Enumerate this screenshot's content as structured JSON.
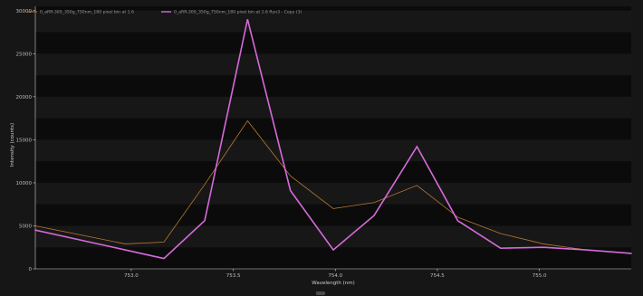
{
  "colors": {
    "background": "#0b0b0b",
    "band_dark": "#0b0b0b",
    "band_light": "#171717",
    "series_1": "#b9782f",
    "series_2": "#d66ad9",
    "axis": "#cfcfcf"
  },
  "chart_data": {
    "type": "line",
    "title": "",
    "xlabel": "Wavelength (nm)",
    "ylabel": "Intensity (counts)",
    "xlim": [
      752.53,
      755.45
    ],
    "ylim": [
      0,
      30500
    ],
    "x_ticks": [
      753.0,
      753.5,
      754.0,
      754.5,
      755.0
    ],
    "x_tick_labels": [
      "753.0",
      "753.5",
      "754.0",
      "754.5",
      "755.0"
    ],
    "y_ticks": [
      0,
      5000,
      10000,
      15000,
      20000,
      25000,
      30000
    ],
    "y_tick_labels": [
      "0",
      "5000",
      "10000",
      "15000",
      "20000",
      "25000",
      "30000"
    ],
    "grid": false,
    "legend_position": "top-left",
    "series": [
      {
        "name": "0_aRR-300_350g_750nm_180 pixel bin at 1.6",
        "color": "#b9782f",
        "line_width": 0.8,
        "x": [
          752.53,
          752.97,
          753.16,
          753.36,
          753.57,
          753.78,
          753.99,
          754.19,
          754.4,
          754.6,
          754.81,
          755.02,
          755.23,
          755.45
        ],
        "y": [
          5000,
          2900,
          3100,
          9800,
          17200,
          10800,
          7000,
          7700,
          9700,
          6000,
          4100,
          2900,
          2200,
          1800
        ]
      },
      {
        "name": "0_aRR-300_350g_750nm_180 pixel bin at 1.6 Run3 - Copy (3)",
        "color": "#d66ad9",
        "line_width": 1.6,
        "x": [
          752.53,
          752.76,
          752.97,
          753.16,
          753.36,
          753.57,
          753.78,
          753.99,
          754.19,
          754.4,
          754.6,
          754.81,
          755.02,
          755.23,
          755.45
        ],
        "y": [
          4500,
          3300,
          2200,
          1200,
          5600,
          29000,
          9100,
          2200,
          6200,
          14200,
          5600,
          2400,
          2500,
          2200,
          1800
        ]
      }
    ]
  }
}
